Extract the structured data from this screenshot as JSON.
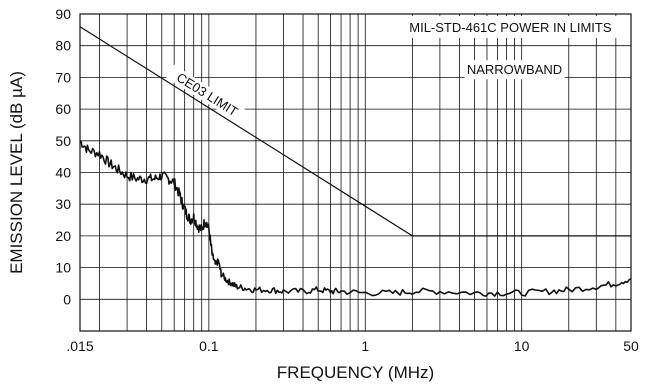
{
  "chart_data": {
    "type": "line",
    "title": "",
    "xlabel": "FREQUENCY (MHz)",
    "ylabel": "EMISSION LEVEL (dB µA)",
    "x_scale": "log",
    "xlim": [
      0.015,
      50
    ],
    "ylim": [
      -10,
      90
    ],
    "x_ticks": [
      {
        "value": 0.015,
        "label": ".015"
      },
      {
        "value": 0.1,
        "label": "0.1"
      },
      {
        "value": 1,
        "label": "1"
      },
      {
        "value": 10,
        "label": "10"
      },
      {
        "value": 50,
        "label": "50"
      }
    ],
    "y_ticks": [
      {
        "value": 0,
        "label": "0"
      },
      {
        "value": 10,
        "label": "10"
      },
      {
        "value": 20,
        "label": "20"
      },
      {
        "value": 30,
        "label": "30"
      },
      {
        "value": 40,
        "label": "40"
      },
      {
        "value": 50,
        "label": "50"
      },
      {
        "value": 60,
        "label": "60"
      },
      {
        "value": 70,
        "label": "70"
      },
      {
        "value": 80,
        "label": "80"
      },
      {
        "value": 90,
        "label": "90"
      }
    ],
    "grid": true,
    "annotations": {
      "limit_label": "CE03 LIMIT",
      "header": "MIL-STD-461C POWER IN LIMITS",
      "narrowband": "NARROWBAND"
    },
    "series": [
      {
        "name": "CE03 LIMIT",
        "x": [
          0.015,
          2,
          50
        ],
        "y": [
          86,
          20,
          20
        ]
      },
      {
        "x": [
          0.015,
          0.017,
          0.02,
          0.023,
          0.026,
          0.03,
          0.035,
          0.04,
          0.045,
          0.05,
          0.055,
          0.06,
          0.065,
          0.068,
          0.072,
          0.076,
          0.08,
          0.085,
          0.09,
          0.095,
          0.1,
          0.105,
          0.11,
          0.115,
          0.12,
          0.13,
          0.14,
          0.15,
          0.17,
          0.2,
          0.25,
          0.3,
          0.4,
          0.5,
          0.6,
          0.7,
          1,
          1.5,
          2,
          3,
          5,
          7,
          10,
          15,
          20,
          30,
          40,
          50
        ],
        "y": [
          50,
          47,
          46,
          43,
          41,
          39,
          38,
          38,
          38,
          39,
          38,
          37,
          33,
          30,
          27,
          25,
          26,
          23,
          22,
          25,
          22,
          14,
          11,
          12,
          8,
          6,
          5,
          4,
          3.5,
          3,
          3,
          2.5,
          2.5,
          3,
          2.5,
          2.5,
          2,
          2,
          2.5,
          2.5,
          2,
          2,
          2,
          2.5,
          3,
          4,
          5,
          6.5
        ]
      }
    ]
  }
}
